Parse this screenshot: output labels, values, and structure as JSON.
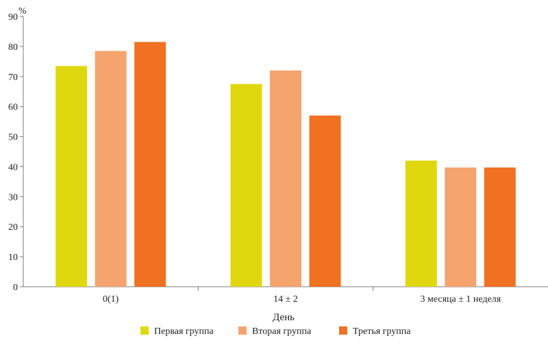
{
  "chart_data": {
    "type": "bar",
    "title": "",
    "xlabel": "День",
    "ylabel": "%",
    "ylim": [
      0,
      90
    ],
    "yticks": [
      0,
      10,
      20,
      30,
      40,
      50,
      60,
      70,
      80,
      90
    ],
    "categories": [
      "0(1)",
      "14 ± 2",
      "3 месяца ± 1 неделя"
    ],
    "series": [
      {
        "name": "Первая группа",
        "color": "#e0d80e",
        "values": [
          73.5,
          67.5,
          42
        ]
      },
      {
        "name": "Вторая группа",
        "color": "#f5a46e",
        "values": [
          78.5,
          72,
          39.7
        ]
      },
      {
        "name": "Третья группа",
        "color": "#f07122",
        "values": [
          81.5,
          57,
          39.7
        ]
      }
    ],
    "legend_position": "bottom",
    "grid": false
  }
}
